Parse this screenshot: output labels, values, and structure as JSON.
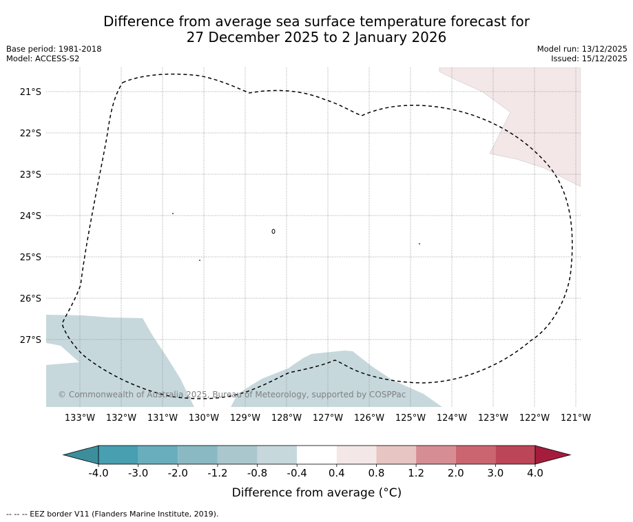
{
  "title": {
    "line1": "Difference from average sea surface temperature forecast for",
    "line2": "27 December 2025 to 2 January 2026"
  },
  "meta_left": {
    "base_period": "Base period: 1981-2018",
    "model": "Model: ACCESS-S2"
  },
  "meta_right": {
    "model_run": "Model run: 13/12/2025",
    "issued": "Issued: 15/12/2025"
  },
  "map": {
    "lat_labels": [
      "21°S",
      "22°S",
      "23°S",
      "24°S",
      "25°S",
      "26°S",
      "27°S"
    ],
    "lon_labels": [
      "133°W",
      "132°W",
      "131°W",
      "130°W",
      "129°W",
      "128°W",
      "127°W",
      "126°W",
      "125°W",
      "124°W",
      "123°W",
      "122°W",
      "121°W"
    ],
    "copyright": "© Commonwealth of Australia 2025, Bureau of Meteorology, supported by COSPPac",
    "anomaly_colors": {
      "warm": "#f3e8e7",
      "cool": "#c7d8dd"
    }
  },
  "colorbar": {
    "ticks": [
      "-4.0",
      "-3.0",
      "-2.0",
      "-1.2",
      "-0.8",
      "-0.4",
      "0.4",
      "0.8",
      "1.2",
      "2.0",
      "3.0",
      "4.0"
    ],
    "colors": [
      "#3d8e9c",
      "#479fb0",
      "#69aebc",
      "#8ab9c4",
      "#aac7cd",
      "#c7d8dd",
      "#ffffff",
      "#f3e8e7",
      "#e7c5c3",
      "#d68d94",
      "#cb6670",
      "#bd4558",
      "#a61c3c"
    ],
    "label": "Difference from average (°C)"
  },
  "footer": "-- -- -- EEZ border V11 (Flanders Marine Institute, 2019)."
}
